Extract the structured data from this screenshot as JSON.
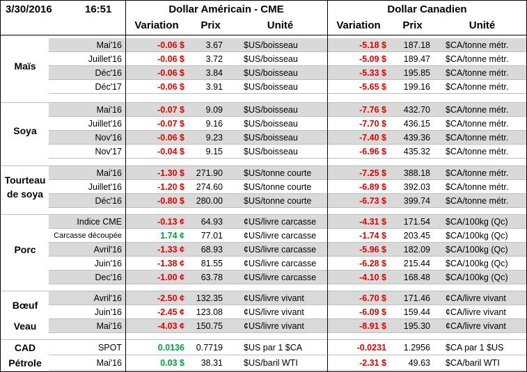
{
  "header": {
    "date": "3/30/2016",
    "time": "16:51",
    "us_title": "Dollar Américain - CME",
    "ca_title": "Dollar Canadien",
    "us_columns": [
      "Variation",
      "Prix",
      "Unité"
    ],
    "ca_columns": [
      "Variation",
      "Prix",
      "Unité"
    ]
  },
  "sections": [
    {
      "label": "Maïs",
      "rows": [
        [
          "Mai'16",
          "-0.06 $",
          "3.67",
          "$US/boisseau",
          "-5.18 $",
          "187.18",
          "$CA/tonne métr."
        ],
        [
          "Juillet'16",
          "-0.06 $",
          "3.72",
          "$US/boisseau",
          "-5.09 $",
          "189.47",
          "$CA/tonne métr."
        ],
        [
          "Déc'16",
          "-0.06 $",
          "3.84",
          "$US/boisseau",
          "-5.33 $",
          "195.85",
          "$CA/tonne métr."
        ],
        [
          "Déc'17",
          "-0.06 $",
          "3.91",
          "$US/boisseau",
          "-5.65 $",
          "199.16",
          "$CA/tonne métr."
        ]
      ]
    },
    {
      "label": "Soya",
      "rows": [
        [
          "Mai'16",
          "-0.07 $",
          "9.09",
          "$US/boisseau",
          "-7.76 $",
          "432.70",
          "$CA/tonne métr."
        ],
        [
          "Juillet'16",
          "-0.07 $",
          "9.16",
          "$US/boisseau",
          "-7.70 $",
          "436.15",
          "$CA/tonne métr."
        ],
        [
          "Nov'16",
          "-0.06 $",
          "9.23",
          "$US/boisseau",
          "-7.40 $",
          "439.36",
          "$CA/tonne métr."
        ],
        [
          "Nov'17",
          "-0.04 $",
          "9.15",
          "$US/boisseau",
          "-6.96 $",
          "435.32",
          "$CA/tonne métr."
        ]
      ]
    },
    {
      "label": "Tourteau de soya",
      "rows": [
        [
          "Mai'16",
          "-1.30 $",
          "271.90",
          "$US/tonne courte",
          "-7.25 $",
          "388.18",
          "$CA/tonne métr."
        ],
        [
          "Juillet'16",
          "-1.20 $",
          "274.60",
          "$US/tonne courte",
          "-6.89 $",
          "392.03",
          "$CA/tonne métr."
        ],
        [
          "Déc'16",
          "-0.80 $",
          "280.00",
          "$US/tonne courte",
          "-6.73 $",
          "399.74",
          "$CA/tonne métr."
        ]
      ]
    },
    {
      "label": "Porc",
      "rows": [
        [
          "Indice CME",
          "-0.13 ¢",
          "64.93",
          "¢US/livre carcasse",
          "-4.31 $",
          "171.54",
          "$CA/100kg (Qc)"
        ],
        [
          "Carcasse découpée",
          "1.74 ¢",
          "77.01",
          "¢US/livre carcasse",
          "-1.74 $",
          "203.45",
          "$CA/100kg (Qc)"
        ],
        [
          "Avril'16",
          "-1.33 ¢",
          "68.93",
          "¢US/livre carcasse",
          "-5.96 $",
          "182.09",
          "$CA/100kg (Qc)"
        ],
        [
          "Juin'16",
          "-1.38 ¢",
          "81.55",
          "¢US/livre carcasse",
          "-6.28 $",
          "215.44",
          "$CA/100kg (Qc)"
        ],
        [
          "Dec'16",
          "-1.00 ¢",
          "63.78",
          "¢US/livre carcasse",
          "-4.10 $",
          "168.48",
          "$CA/100kg (Qc)"
        ]
      ]
    },
    {
      "label": "Bœuf",
      "rows": [
        [
          "Avril'16",
          "-2.50 ¢",
          "132.35",
          "¢US/livre vivant",
          "-6.70 $",
          "171.46",
          "¢CA/livre vivant"
        ],
        [
          "Juin'16",
          "-2.45 ¢",
          "123.08",
          "¢US/livre vivant",
          "-6.09 $",
          "159.44",
          "¢CA/livre vivant"
        ]
      ]
    },
    {
      "label": "Veau",
      "rows": [
        [
          "Mai'16",
          "-4.03 ¢",
          "150.75",
          "¢US/livre vivant",
          "-8.91 $",
          "195.30",
          "¢CA/livre vivant"
        ]
      ]
    },
    {
      "label": "CAD",
      "rows": [
        [
          "SPOT",
          "0.0136",
          "0.7719",
          "$US par 1 $CA",
          "-0.0231",
          "1.2956",
          "$CA par 1 $US"
        ]
      ]
    },
    {
      "label": "Pétrole",
      "rows": [
        [
          "Mai'16",
          "0.03 $",
          "38.31",
          "$US/baril WTI",
          "-2.31 $",
          "49.63",
          "$CA/baril WTI"
        ]
      ]
    }
  ]
}
